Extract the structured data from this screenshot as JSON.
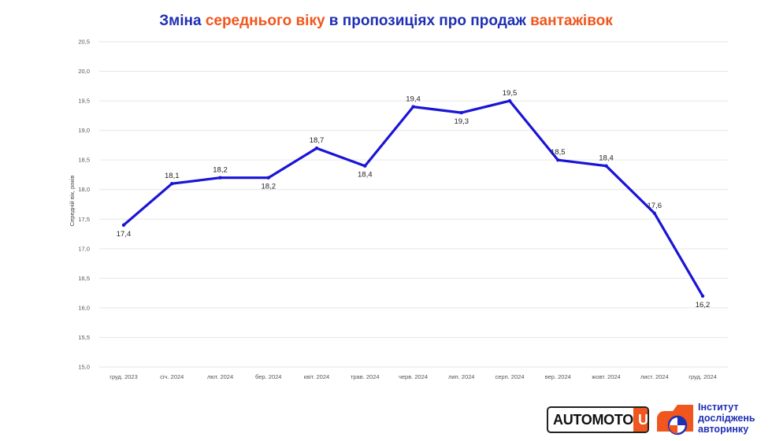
{
  "title": {
    "parts": [
      {
        "text": "Зміна ",
        "color": "#1f2fb3"
      },
      {
        "text": "середнього віку",
        "color": "#f0561d"
      },
      {
        "text": " в пропозиціях про продаж ",
        "color": "#1f2fb3"
      },
      {
        "text": "вантажівок",
        "color": "#f0561d"
      }
    ]
  },
  "chart_data": {
    "type": "line",
    "title": "Зміна середнього віку в пропозиціях про продаж вантажівок",
    "ylabel": "Середній вік, років",
    "xlabel": "",
    "ylim": [
      15.0,
      20.5
    ],
    "yticks": [
      "15,0",
      "15,5",
      "16,0",
      "16,5",
      "17,0",
      "17,5",
      "18,0",
      "18,5",
      "19,0",
      "19,5",
      "20,0",
      "20,5"
    ],
    "ytick_values": [
      15.0,
      15.5,
      16.0,
      16.5,
      17.0,
      17.5,
      18.0,
      18.5,
      19.0,
      19.5,
      20.0,
      20.5
    ],
    "grid": true,
    "categories": [
      "груд. 2023",
      "січ. 2024",
      "лют. 2024",
      "бер. 2024",
      "квіт. 2024",
      "трав. 2024",
      "черв. 2024",
      "лип. 2024",
      "серп. 2024",
      "вер. 2024",
      "жовт. 2024",
      "лист. 2024",
      "груд. 2024"
    ],
    "series": [
      {
        "values": [
          17.4,
          18.1,
          18.2,
          18.2,
          18.7,
          18.4,
          19.4,
          19.3,
          19.5,
          18.5,
          18.4,
          17.6,
          16.2
        ],
        "labels": [
          "17,4",
          "18,1",
          "18,2",
          "18,2",
          "18,7",
          "18,4",
          "19,4",
          "19,3",
          "19,5",
          "18,5",
          "18,4",
          "17,6",
          "16,2"
        ],
        "color": "#1a14d6"
      }
    ]
  },
  "logos": {
    "automoto_main": "AUTOMOTO",
    "automoto_suffix": "UA",
    "institute_lines": [
      "Інститут",
      "досліджень",
      "авторинку"
    ]
  },
  "colors": {
    "accent_blue": "#1f2fb3",
    "accent_orange": "#f0561d",
    "line": "#1a14d6"
  }
}
